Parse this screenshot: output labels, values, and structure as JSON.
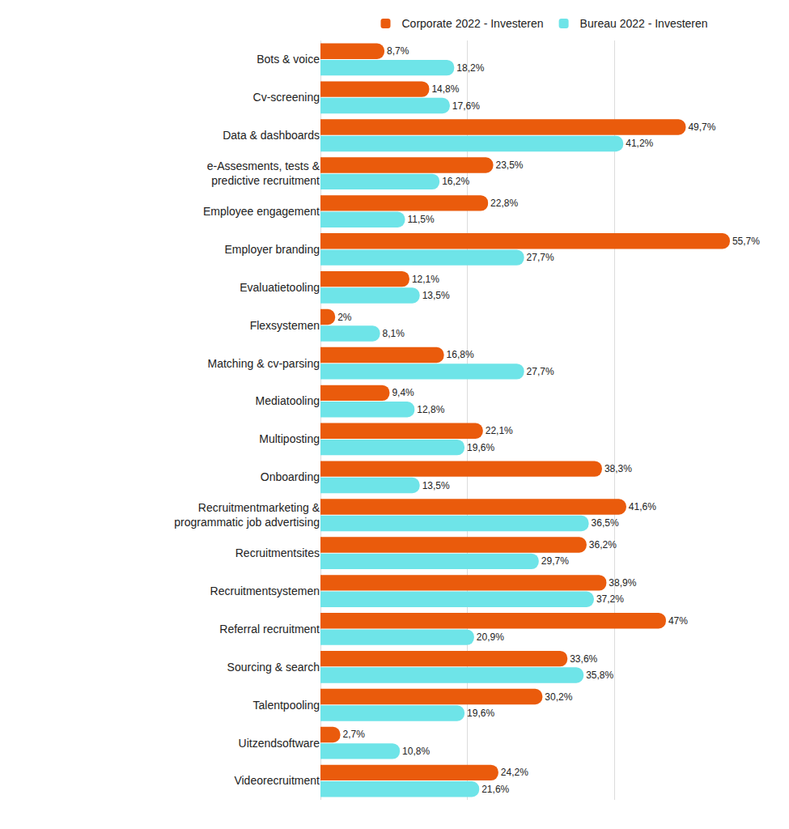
{
  "chart_data": {
    "type": "bar",
    "orientation": "horizontal",
    "categories": [
      "Bots & voice",
      "Cv-screening",
      "Data & dashboards",
      "e-Assesments, tests & predictive recruitment",
      "Employee engagement",
      "Employer branding",
      "Evaluatietooling",
      "Flexsystemen",
      "Matching & cv-parsing",
      "Mediatooling",
      "Multiposting",
      "Onboarding",
      "Recruitmentmarketing & programmatic job advertising",
      "Recruitmentsites",
      "Recruitmentsystemen",
      "Referral recruitment",
      "Sourcing & search",
      "Talentpooling",
      "Uitzendsoftware",
      "Videorecruitment"
    ],
    "series": [
      {
        "name": "Corporate 2022 - Investeren",
        "color": "#ea5b0c",
        "values": [
          8.7,
          14.8,
          49.7,
          23.5,
          22.8,
          55.7,
          12.1,
          2,
          16.8,
          9.4,
          22.1,
          38.3,
          41.6,
          36.2,
          38.9,
          47,
          33.6,
          30.2,
          2.7,
          24.2
        ],
        "value_labels": [
          "8,7%",
          "14,8%",
          "49,7%",
          "23,5%",
          "22,8%",
          "55,7%",
          "12,1%",
          "2%",
          "16,8%",
          "9,4%",
          "22,1%",
          "38,3%",
          "41,6%",
          "36,2%",
          "38,9%",
          "47%",
          "33,6%",
          "30,2%",
          "2,7%",
          "24,2%"
        ]
      },
      {
        "name": "Bureau 2022 - Investeren",
        "color": "#6ee4e8",
        "values": [
          18.2,
          17.6,
          41.2,
          16.2,
          11.5,
          27.7,
          13.5,
          8.1,
          27.7,
          12.8,
          19.6,
          13.5,
          36.5,
          29.7,
          37.2,
          20.9,
          35.8,
          19.6,
          10.8,
          21.6
        ],
        "value_labels": [
          "18,2%",
          "17,6%",
          "41,2%",
          "16,2%",
          "11,5%",
          "27,7%",
          "13,5%",
          "8,1%",
          "27,7%",
          "12,8%",
          "19,6%",
          "13,5%",
          "36,5%",
          "29,7%",
          "37,2%",
          "20,9%",
          "35,8%",
          "19,6%",
          "10,8%",
          "21,6%"
        ]
      }
    ],
    "xlim": [
      0,
      60
    ],
    "xticks": [
      0,
      20,
      40,
      60
    ],
    "grid": true,
    "legend": "top",
    "data_labels": true,
    "tick_labels": "y"
  }
}
